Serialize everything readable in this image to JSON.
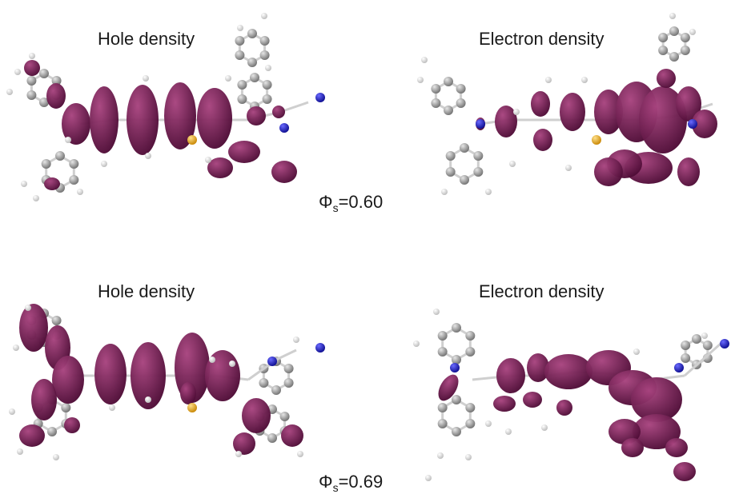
{
  "panels": [
    {
      "label": "Hole density"
    },
    {
      "label": "Electron density"
    },
    {
      "label": "Hole density"
    },
    {
      "label": "Electron density"
    }
  ],
  "phi_values": [
    {
      "symbol": "Φ",
      "subscript": "s",
      "value": "=0.60"
    },
    {
      "symbol": "Φ",
      "subscript": "s",
      "value": "=0.69"
    }
  ],
  "colors": {
    "lobe": "#7a1556",
    "lobe_dark": "#4d0b35",
    "carbon": "#a8a8a8",
    "hydrogen": "#f2f2f2",
    "nitrogen": "#1a1ad6",
    "sulfur": "#f2b01e",
    "bond": "#cfcfcf"
  }
}
